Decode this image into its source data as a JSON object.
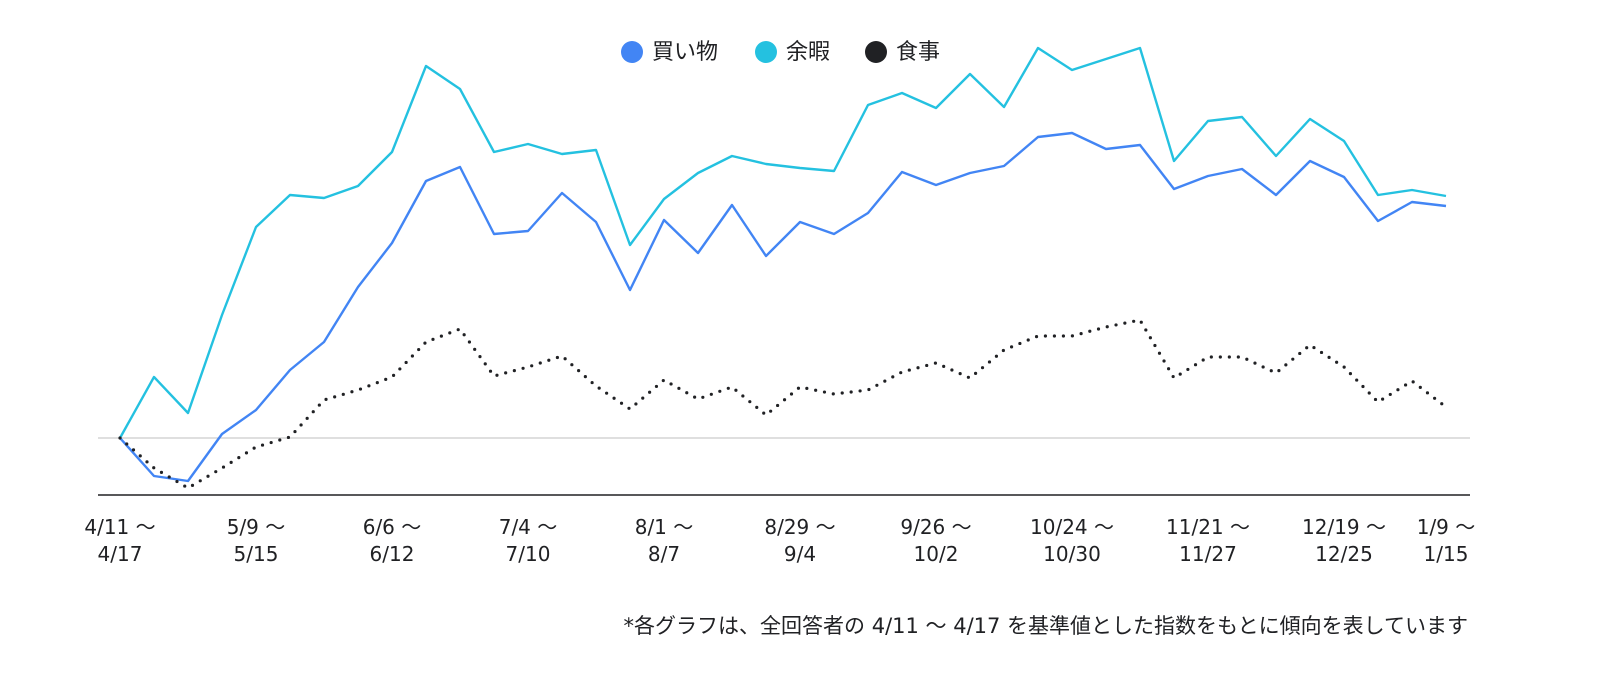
{
  "chart_data": {
    "type": "line",
    "legend": "top",
    "note": "*各グラフは、全回答者の 4/11 〜 4/17 を基準値とした指数をもとに傾向を表しています",
    "categories": [
      "4/11 〜\n4/17",
      null,
      null,
      null,
      "5/9 〜\n5/15",
      null,
      null,
      null,
      "6/6 〜\n6/12",
      null,
      null,
      null,
      "7/4 〜\n7/10",
      null,
      null,
      null,
      "8/1 〜\n8/7",
      null,
      null,
      null,
      "8/29 〜\n9/4",
      null,
      null,
      null,
      "9/26 〜\n10/2",
      null,
      null,
      null,
      "10/24 〜\n10/30",
      null,
      null,
      null,
      "11/21 〜\n11/27",
      null,
      null,
      null,
      "12/19 〜\n12/25",
      null,
      null,
      "1/9 〜\n1/15"
    ],
    "series": [
      {
        "name": "買い物",
        "color": "#4285f4",
        "style": "solid",
        "values": [
          100,
          81,
          78.5,
          102,
          114,
          134,
          148,
          175.5,
          197.5,
          228.5,
          235.5,
          202,
          203.5,
          222.5,
          208,
          174,
          209,
          192.5,
          216.5,
          191,
          208,
          202,
          212.5,
          233,
          226.5,
          232.5,
          236,
          250.5,
          252.5,
          244.5,
          246.5,
          224.5,
          231,
          234.5,
          221.5,
          238.5,
          230.5,
          208.5,
          218,
          216
        ]
      },
      {
        "name": "余暇",
        "color": "#24c1e0",
        "style": "solid",
        "values": [
          100,
          130.5,
          112.5,
          161.5,
          205.5,
          221.5,
          220,
          226,
          243,
          286,
          274.5,
          243,
          247,
          242,
          244,
          196.5,
          219.5,
          232.5,
          241,
          237,
          235,
          233.5,
          266.5,
          272.5,
          265,
          282,
          265.5,
          295,
          284,
          289.5,
          295,
          238.5,
          258.5,
          260.5,
          241,
          259.5,
          248.5,
          221.5,
          224,
          221
        ]
      },
      {
        "name": "食事",
        "color": "#202124",
        "style": "dotted",
        "values": [
          100,
          85,
          75,
          85,
          95.5,
          100.5,
          119,
          124,
          130.5,
          148,
          154.5,
          131,
          135.5,
          141,
          126,
          114.5,
          129,
          119.5,
          125.5,
          111.5,
          125.5,
          122,
          124,
          133,
          137.5,
          130,
          144,
          151,
          151,
          155.5,
          159,
          130,
          140.5,
          140.5,
          132.5,
          146.5,
          135.5,
          118,
          128.5,
          115.5
        ]
      }
    ],
    "ylim": [
      71.5,
      299
    ],
    "yticks": [
      100
    ],
    "grid": true
  }
}
